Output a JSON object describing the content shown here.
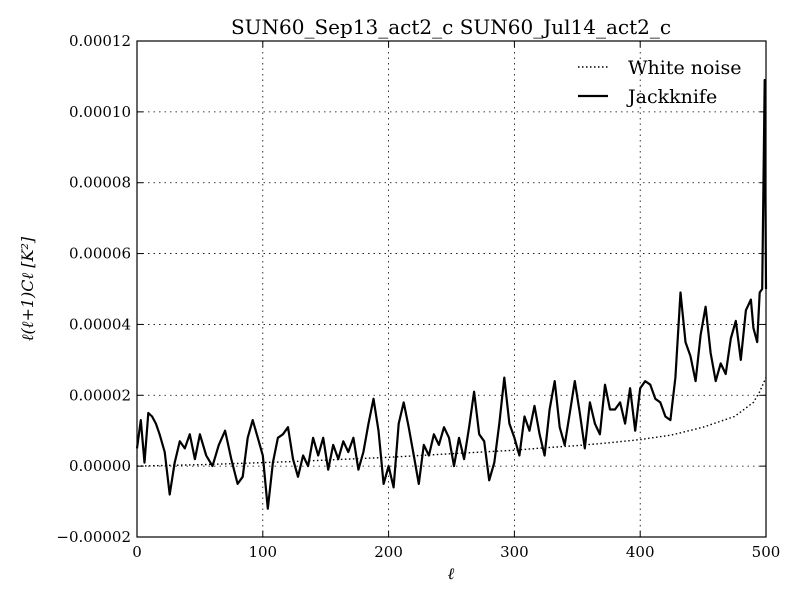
{
  "chart_data": {
    "type": "line",
    "title": "SUN60_Sep13_act2_c SUN60_Jul14_act2_c",
    "xlabel": "ℓ",
    "ylabel": "ℓ(ℓ+1)Cℓ [K²]",
    "xlim": [
      0,
      500
    ],
    "ylim": [
      -2e-05,
      0.00012
    ],
    "x_ticks": [
      0,
      100,
      200,
      300,
      400,
      500
    ],
    "x_tick_labels": [
      "0",
      "100",
      "200",
      "300",
      "400",
      "500"
    ],
    "y_ticks": [
      -2e-05,
      0,
      2e-05,
      4e-05,
      6e-05,
      8e-05,
      0.0001,
      0.00012
    ],
    "y_tick_labels": [
      "−0.00002",
      "0.00000",
      "0.00002",
      "0.00004",
      "0.00006",
      "0.00008",
      "0.00010",
      "0.00012"
    ],
    "grid": true,
    "legend_position": "top-right",
    "series": [
      {
        "name": "White noise",
        "style": "dotted",
        "color": "#000000",
        "x": [
          0,
          25,
          50,
          75,
          100,
          125,
          150,
          175,
          200,
          225,
          250,
          275,
          300,
          325,
          350,
          375,
          400,
          425,
          450,
          475,
          490,
          495,
          500
        ],
        "y": [
          0.0,
          2e-07,
          4e-07,
          7e-07,
          1e-06,
          1.3e-06,
          1.7e-06,
          2.1e-06,
          2.5e-06,
          3e-06,
          3.5e-06,
          4e-06,
          4.5e-06,
          5.2e-06,
          5.8e-06,
          6.6e-06,
          7.5e-06,
          8.8e-06,
          1.1e-05,
          1.4e-05,
          1.8e-05,
          2.1e-05,
          2.5e-05
        ]
      },
      {
        "name": "Jackknife",
        "style": "solid",
        "color": "#000000",
        "x": [
          0,
          3,
          6,
          9,
          12,
          15,
          18,
          22,
          26,
          30,
          34,
          38,
          42,
          46,
          50,
          55,
          60,
          65,
          70,
          75,
          80,
          84,
          88,
          92,
          96,
          100,
          104,
          108,
          112,
          116,
          120,
          124,
          128,
          132,
          136,
          140,
          144,
          148,
          152,
          156,
          160,
          164,
          168,
          172,
          176,
          180,
          184,
          188,
          192,
          196,
          200,
          204,
          208,
          212,
          216,
          220,
          224,
          228,
          232,
          236,
          240,
          244,
          248,
          252,
          256,
          260,
          264,
          268,
          272,
          276,
          280,
          284,
          288,
          292,
          296,
          300,
          304,
          308,
          312,
          316,
          320,
          324,
          328,
          332,
          336,
          340,
          344,
          348,
          352,
          356,
          360,
          364,
          368,
          372,
          376,
          380,
          384,
          388,
          392,
          396,
          400,
          404,
          408,
          412,
          416,
          420,
          424,
          428,
          432,
          436,
          440,
          444,
          448,
          452,
          456,
          460,
          464,
          468,
          472,
          476,
          480,
          484,
          488,
          490,
          493,
          495,
          497,
          499,
          500
        ],
        "y": [
          5e-06,
          1.3e-05,
          1e-06,
          1.5e-05,
          1.4e-05,
          1.2e-05,
          9e-06,
          4e-06,
          -8e-06,
          1e-06,
          7e-06,
          5e-06,
          9e-06,
          2e-06,
          9e-06,
          3e-06,
          0.0,
          6e-06,
          1e-05,
          2e-06,
          -5e-06,
          -3e-06,
          8e-06,
          1.3e-05,
          8e-06,
          3e-06,
          -1.2e-05,
          1e-06,
          8e-06,
          9e-06,
          1.1e-05,
          2e-06,
          -3e-06,
          3e-06,
          0.0,
          8e-06,
          3e-06,
          8e-06,
          -1e-06,
          6e-06,
          2e-06,
          7e-06,
          4e-06,
          8e-06,
          -1e-06,
          4e-06,
          1.2e-05,
          1.9e-05,
          1e-05,
          -5e-06,
          0.0,
          -6e-06,
          1.2e-05,
          1.8e-05,
          1.1e-05,
          3e-06,
          -5e-06,
          6e-06,
          3e-06,
          9e-06,
          6e-06,
          1.1e-05,
          8e-06,
          0.0,
          8e-06,
          2e-06,
          1.1e-05,
          2.1e-05,
          9e-06,
          7e-06,
          -4e-06,
          1e-06,
          1.2e-05,
          2.5e-05,
          1.2e-05,
          8e-06,
          3e-06,
          1.4e-05,
          1e-05,
          1.7e-05,
          9e-06,
          3e-06,
          1.6e-05,
          2.4e-05,
          1.1e-05,
          6e-06,
          1.5e-05,
          2.4e-05,
          1.5e-05,
          5e-06,
          1.8e-05,
          1.2e-05,
          9e-06,
          2.3e-05,
          1.6e-05,
          1.6e-05,
          1.8e-05,
          1.2e-05,
          2.2e-05,
          1e-05,
          2.2e-05,
          2.4e-05,
          2.3e-05,
          1.9e-05,
          1.8e-05,
          1.4e-05,
          1.3e-05,
          2.5e-05,
          4.9e-05,
          3.5e-05,
          3.1e-05,
          2.4e-05,
          3.7e-05,
          4.5e-05,
          3.2e-05,
          2.4e-05,
          2.9e-05,
          2.6e-05,
          3.6e-05,
          4.1e-05,
          3e-05,
          4.4e-05,
          4.7e-05,
          3.9e-05,
          3.5e-05,
          4.9e-05,
          5e-05,
          0.000109,
          5e-05
        ]
      }
    ]
  }
}
